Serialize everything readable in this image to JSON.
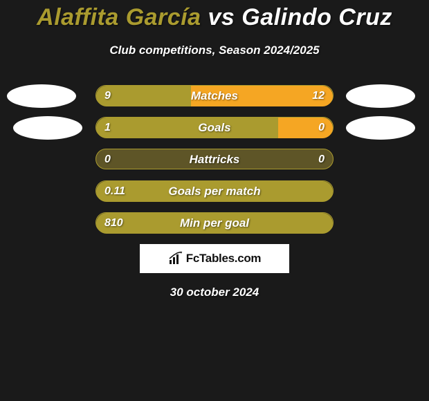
{
  "title": {
    "left_name": "Alaffita García",
    "vs": " vs ",
    "right_name": "Galindo Cruz",
    "left_color": "#aa9b2f",
    "right_color": "#ffffff",
    "fontsize": 34
  },
  "subtitle": "Club competitions, Season 2024/2025",
  "background_color": "#1a1a1a",
  "bar_colors": {
    "left": "#aa9b2f",
    "right": "#f5a623",
    "track": "#2e2b1a"
  },
  "avatars": {
    "left_bg": "#ffffff",
    "right_bg": "#ffffff"
  },
  "rows": [
    {
      "label": "Matches",
      "left_val": "9",
      "right_val": "12",
      "left_pct": 40,
      "right_pct": 60,
      "show_avatars": true
    },
    {
      "label": "Goals",
      "left_val": "1",
      "right_val": "0",
      "left_pct": 77,
      "right_pct": 23,
      "show_avatars": true,
      "avatar_inset": true
    },
    {
      "label": "Hattricks",
      "left_val": "0",
      "right_val": "0",
      "left_pct": 0,
      "right_pct": 0,
      "track_only": true
    },
    {
      "label": "Goals per match",
      "left_val": "0.11",
      "right_val": "",
      "left_pct": 100,
      "right_pct": 0,
      "full_left": true
    },
    {
      "label": "Min per goal",
      "left_val": "810",
      "right_val": "",
      "left_pct": 100,
      "right_pct": 0,
      "full_left": true
    }
  ],
  "logo": {
    "text": "FcTables.com",
    "box_bg": "#ffffff"
  },
  "date": "30 october 2024"
}
